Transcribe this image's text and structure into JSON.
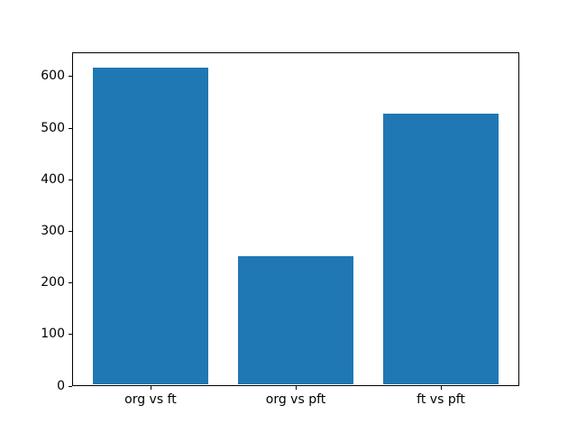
{
  "chart_data": {
    "type": "bar",
    "title": "",
    "xlabel": "",
    "ylabel": "",
    "categories": [
      "org vs ft",
      "org vs pft",
      "ft vs pft"
    ],
    "values": [
      616,
      251,
      528
    ],
    "yticks": [
      0,
      100,
      200,
      300,
      400,
      500,
      600
    ],
    "ylim": [
      0,
      647
    ],
    "xlim": [
      -0.54,
      2.54
    ],
    "bar_width_fraction": 0.8,
    "bar_color": "#1f77b4",
    "axes_color": "#000000",
    "background": "#ffffff",
    "grid": "off",
    "legend": "none"
  }
}
